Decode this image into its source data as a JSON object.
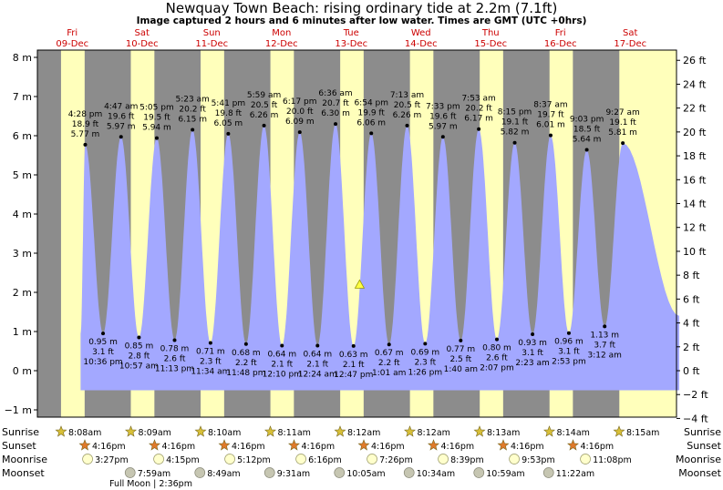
{
  "header": {
    "title": "Newquay Town Beach: rising  ordinary tide at 2.2m (7.1ft)",
    "subtitle": "Image captured 2 hours and 6 minutes after low water. Times are GMT (UTC +0hrs)"
  },
  "chart_data": {
    "type": "area",
    "title": "Newquay Town Beach: rising  ordinary tide at 2.2m (7.1ft)",
    "subtitle": "Image captured 2 hours and 6 minutes after low water. Times are GMT (UTC +0hrs)",
    "colors": {
      "night": "#8c8c8c",
      "day": "#ffffbb",
      "water": "#a3a8ff",
      "marker": "#ffff44"
    },
    "ylabel": "",
    "ylim_m": [
      -1.3,
      8.3
    ],
    "y_ticks_m": [
      "8 m",
      "7 m",
      "6 m",
      "5 m",
      "4 m",
      "3 m",
      "2 m",
      "1 m",
      "0 m",
      "−1 m"
    ],
    "y_ticks_ft": [
      "26 ft",
      "24 ft",
      "22 ft",
      "20 ft",
      "18 ft",
      "16 ft",
      "14 ft",
      "12 ft",
      "10 ft",
      "8 ft",
      "6 ft",
      "4 ft",
      "2 ft",
      "0 ft",
      "−2 ft",
      "−4 ft"
    ],
    "days": [
      {
        "dow": "Fri",
        "date": "09-Dec"
      },
      {
        "dow": "Sat",
        "date": "10-Dec"
      },
      {
        "dow": "Sun",
        "date": "11-Dec"
      },
      {
        "dow": "Mon",
        "date": "12-Dec"
      },
      {
        "dow": "Tue",
        "date": "13-Dec"
      },
      {
        "dow": "Wed",
        "date": "14-Dec"
      },
      {
        "dow": "Thu",
        "date": "15-Dec"
      },
      {
        "dow": "Fri",
        "date": "16-Dec"
      },
      {
        "dow": "Sat",
        "date": "17-Dec"
      }
    ],
    "tides": [
      {
        "type": "high",
        "day": 0,
        "time": "4:28 pm",
        "ft": "18.9 ft",
        "m": 5.77,
        "label_m": "5.77 m"
      },
      {
        "type": "low",
        "day": 0,
        "time": "10:36 pm",
        "ft": "3.1 ft",
        "m": 0.95,
        "label_m": "0.95 m"
      },
      {
        "type": "high",
        "day": 1,
        "time": "4:47 am",
        "ft": "19.6 ft",
        "m": 5.97,
        "label_m": "5.97 m"
      },
      {
        "type": "low",
        "day": 1,
        "time": "10:57 am",
        "ft": "2.8 ft",
        "m": 0.85,
        "label_m": "0.85 m"
      },
      {
        "type": "high",
        "day": 1,
        "time": "5:05 pm",
        "ft": "19.5 ft",
        "m": 5.94,
        "label_m": "5.94 m"
      },
      {
        "type": "low",
        "day": 1,
        "time": "11:13 pm",
        "ft": "2.6 ft",
        "m": 0.78,
        "label_m": "0.78 m"
      },
      {
        "type": "high",
        "day": 2,
        "time": "5:23 am",
        "ft": "20.2 ft",
        "m": 6.15,
        "label_m": "6.15 m"
      },
      {
        "type": "low",
        "day": 2,
        "time": "11:34 am",
        "ft": "2.3 ft",
        "m": 0.71,
        "label_m": "0.71 m"
      },
      {
        "type": "high",
        "day": 2,
        "time": "5:41 pm",
        "ft": "19.8 ft",
        "m": 6.05,
        "label_m": "6.05 m"
      },
      {
        "type": "low",
        "day": 2,
        "time": "11:48 pm",
        "ft": "2.2 ft",
        "m": 0.68,
        "label_m": "0.68 m"
      },
      {
        "type": "high",
        "day": 3,
        "time": "5:59 am",
        "ft": "20.5 ft",
        "m": 6.26,
        "label_m": "6.26 m"
      },
      {
        "type": "low",
        "day": 3,
        "time": "12:10 pm",
        "ft": "2.1 ft",
        "m": 0.64,
        "label_m": "0.64 m"
      },
      {
        "type": "high",
        "day": 3,
        "time": "6:17 pm",
        "ft": "20.0 ft",
        "m": 6.09,
        "label_m": "6.09 m"
      },
      {
        "type": "low",
        "day": 4,
        "time": "12:24 am",
        "ft": "2.1 ft",
        "m": 0.64,
        "label_m": "0.64 m"
      },
      {
        "type": "high",
        "day": 4,
        "time": "6:36 am",
        "ft": "20.7 ft",
        "m": 6.3,
        "label_m": "6.30 m"
      },
      {
        "type": "low",
        "day": 4,
        "time": "12:47 pm",
        "ft": "2.1 ft",
        "m": 0.63,
        "label_m": "0.63 m"
      },
      {
        "type": "high",
        "day": 4,
        "time": "6:54 pm",
        "ft": "19.9 ft",
        "m": 6.06,
        "label_m": "6.06 m"
      },
      {
        "type": "low",
        "day": 5,
        "time": "1:01 am",
        "ft": "2.2 ft",
        "m": 0.67,
        "label_m": "0.67 m"
      },
      {
        "type": "high",
        "day": 5,
        "time": "7:13 am",
        "ft": "20.5 ft",
        "m": 6.26,
        "label_m": "6.26 m"
      },
      {
        "type": "low",
        "day": 5,
        "time": "1:26 pm",
        "ft": "2.3 ft",
        "m": 0.69,
        "label_m": "0.69 m"
      },
      {
        "type": "high",
        "day": 5,
        "time": "7:33 pm",
        "ft": "19.6 ft",
        "m": 5.97,
        "label_m": "5.97 m"
      },
      {
        "type": "low",
        "day": 6,
        "time": "1:40 am",
        "ft": "2.5 ft",
        "m": 0.77,
        "label_m": "0.77 m"
      },
      {
        "type": "high",
        "day": 6,
        "time": "7:53 am",
        "ft": "20.2 ft",
        "m": 6.17,
        "label_m": "6.17 m"
      },
      {
        "type": "low",
        "day": 6,
        "time": "2:07 pm",
        "ft": "2.6 ft",
        "m": 0.8,
        "label_m": "0.80 m"
      },
      {
        "type": "high",
        "day": 6,
        "time": "8:15 pm",
        "ft": "19.1 ft",
        "m": 5.82,
        "label_m": "5.82 m"
      },
      {
        "type": "low",
        "day": 7,
        "time": "2:23 am",
        "ft": "3.1 ft",
        "m": 0.93,
        "label_m": "0.93 m"
      },
      {
        "type": "high",
        "day": 7,
        "time": "8:37 am",
        "ft": "19.7 ft",
        "m": 6.01,
        "label_m": "6.01 m"
      },
      {
        "type": "low",
        "day": 7,
        "time": "2:53 pm",
        "ft": "3.1 ft",
        "m": 0.96,
        "label_m": "0.96 m"
      },
      {
        "type": "high",
        "day": 7,
        "time": "9:03 pm",
        "ft": "18.5 ft",
        "m": 5.64,
        "label_m": "5.64 m"
      },
      {
        "type": "low",
        "day": 8,
        "time": "3:12 am",
        "ft": "3.7 ft",
        "m": 1.13,
        "label_m": "1.13 m"
      },
      {
        "type": "high",
        "day": 8,
        "time": "9:27 am",
        "ft": "19.1 ft",
        "m": 5.81,
        "label_m": "5.81 m"
      }
    ],
    "current": {
      "day": 4,
      "time": "2:53 pm",
      "m": 2.2
    },
    "sun_moon": {
      "row_labels": {
        "sunrise": "Sunrise",
        "sunset": "Sunset",
        "moonrise": "Moonrise",
        "moonset": "Moonset"
      },
      "sunrise": [
        "8:08am",
        "8:09am",
        "8:10am",
        "8:11am",
        "8:12am",
        "8:12am",
        "8:13am",
        "8:14am",
        "8:15am"
      ],
      "sunset": [
        "4:16pm",
        "4:16pm",
        "4:16pm",
        "4:16pm",
        "4:16pm",
        "4:16pm",
        "4:16pm",
        "4:16pm"
      ],
      "moonrise": [
        "3:27pm",
        "4:15pm",
        "5:12pm",
        "6:16pm",
        "7:26pm",
        "8:39pm",
        "9:53pm",
        "11:08pm"
      ],
      "moonset": [
        "7:59am",
        "8:49am",
        "9:31am",
        "10:05am",
        "10:34am",
        "10:59am",
        "11:22am"
      ],
      "moonset_day_offset": 1,
      "note": "Full Moon | 2:36pm"
    }
  }
}
